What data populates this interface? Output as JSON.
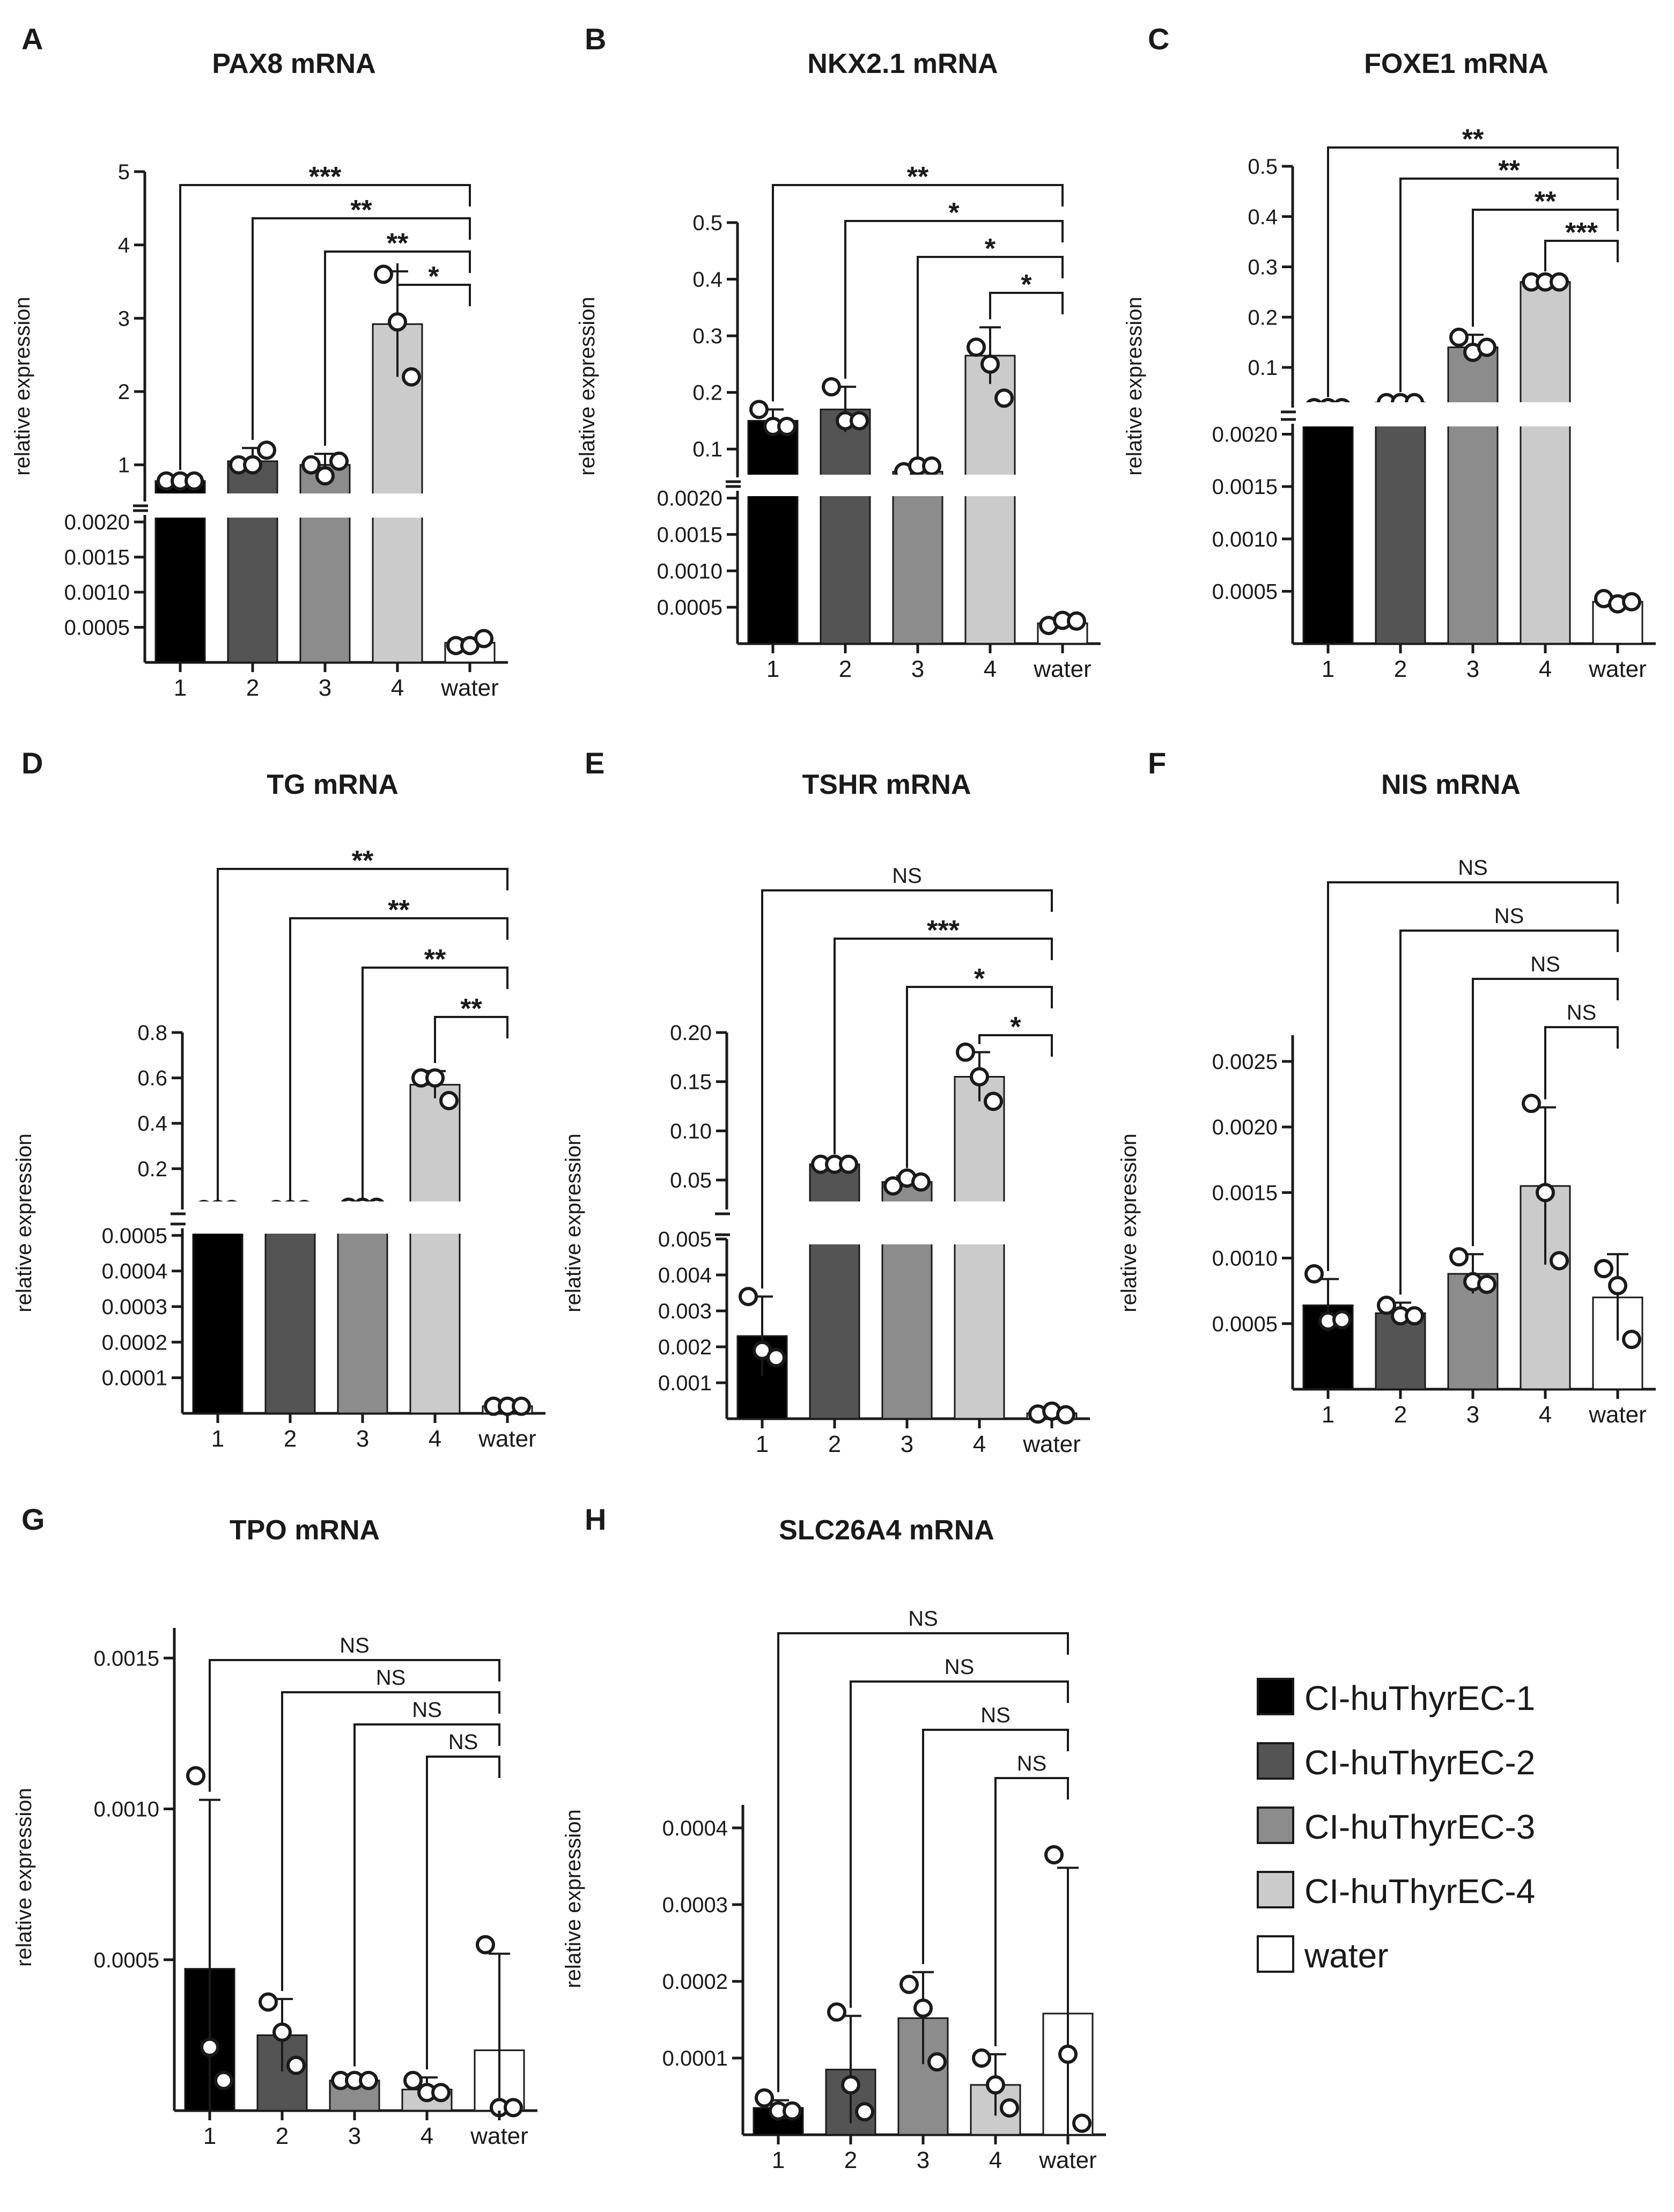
{
  "figure": {
    "legend": [
      {
        "label": "CI-huThyrEC-1",
        "color": "#000000"
      },
      {
        "label": "CI-huThyrEC-2",
        "color": "#545454"
      },
      {
        "label": "CI-huThyrEC-3",
        "color": "#8c8c8c"
      },
      {
        "label": "CI-huThyrEC-4",
        "color": "#cbcbcb"
      },
      {
        "label": "water",
        "color": "#ffffff"
      }
    ]
  },
  "chart_data": [
    {
      "panel": "A",
      "title": "PAX8 mRNA",
      "type": "bar",
      "ylabel": "relative expression",
      "categories": [
        "1",
        "2",
        "3",
        "4",
        "water"
      ],
      "broken_axis": true,
      "lower_ticks": [
        "0.0005",
        "0.0010",
        "0.0015",
        "0.0020"
      ],
      "lower_ylim": [
        0,
        0.0021
      ],
      "upper_ticks": [
        "1",
        "2",
        "3",
        "4",
        "5"
      ],
      "upper_ylim": [
        0.5,
        5
      ],
      "values": [
        0.78,
        1.05,
        1.0,
        2.92,
        0.00028
      ],
      "errors": [
        0.04,
        0.18,
        0.15,
        0.72,
        5e-05
      ],
      "points": [
        [
          0.78,
          0.78,
          0.78
        ],
        [
          1.0,
          1.0,
          1.2
        ],
        [
          1.0,
          0.85,
          1.05
        ],
        [
          3.6,
          2.95,
          2.2
        ],
        [
          0.00024,
          0.00024,
          0.00034
        ]
      ],
      "comparisons": [
        {
          "from": "1",
          "to": "water",
          "label": "***"
        },
        {
          "from": "2",
          "to": "water",
          "label": "**"
        },
        {
          "from": "3",
          "to": "water",
          "label": "**"
        },
        {
          "from": "4",
          "to": "water",
          "label": "*"
        }
      ]
    },
    {
      "panel": "B",
      "title": "NKX2.1 mRNA",
      "type": "bar",
      "ylabel": "relative expression",
      "categories": [
        "1",
        "2",
        "3",
        "4",
        "water"
      ],
      "broken_axis": true,
      "lower_ticks": [
        "0.0005",
        "0.0010",
        "0.0015",
        "0.0020"
      ],
      "lower_ylim": [
        0,
        0.0021
      ],
      "upper_ticks": [
        "0.1",
        "0.2",
        "0.3",
        "0.4",
        "0.5"
      ],
      "upper_ylim": [
        0.05,
        0.5
      ],
      "values": [
        0.15,
        0.17,
        0.06,
        0.265,
        0.00028
      ],
      "errors": [
        0.02,
        0.04,
        0.01,
        0.05,
        4e-05
      ],
      "points": [
        [
          0.17,
          0.14,
          0.14
        ],
        [
          0.21,
          0.15,
          0.15
        ],
        [
          0.06,
          0.07,
          0.07
        ],
        [
          0.28,
          0.25,
          0.19
        ],
        [
          0.00025,
          0.00032,
          0.00031
        ]
      ],
      "comparisons": [
        {
          "from": "1",
          "to": "water",
          "label": "**"
        },
        {
          "from": "2",
          "to": "water",
          "label": "*"
        },
        {
          "from": "3",
          "to": "water",
          "label": "*"
        },
        {
          "from": "4",
          "to": "water",
          "label": "*"
        }
      ]
    },
    {
      "panel": "C",
      "title": "FOXE1 mRNA",
      "type": "bar",
      "ylabel": "relative expression",
      "categories": [
        "1",
        "2",
        "3",
        "4",
        "water"
      ],
      "broken_axis": true,
      "lower_ticks": [
        "0.0005",
        "0.0010",
        "0.0015",
        "0.0020"
      ],
      "lower_ylim": [
        0,
        0.0021
      ],
      "upper_ticks": [
        "0.1",
        "0.2",
        "0.3",
        "0.4",
        "0.5"
      ],
      "upper_ylim": [
        0.02,
        0.5
      ],
      "values": [
        0.02,
        0.03,
        0.14,
        0.27,
        0.0004
      ],
      "errors": [
        0.005,
        0.005,
        0.025,
        0.005,
        5e-05
      ],
      "points": [
        [
          0.02,
          0.02,
          0.02
        ],
        [
          0.03,
          0.03,
          0.03
        ],
        [
          0.16,
          0.13,
          0.14
        ],
        [
          0.27,
          0.27,
          0.27
        ],
        [
          0.00043,
          0.00038,
          0.0004
        ]
      ],
      "comparisons": [
        {
          "from": "1",
          "to": "water",
          "label": "**"
        },
        {
          "from": "2",
          "to": "water",
          "label": "**"
        },
        {
          "from": "3",
          "to": "water",
          "label": "**"
        },
        {
          "from": "4",
          "to": "water",
          "label": "***"
        }
      ]
    },
    {
      "panel": "D",
      "title": "TG mRNA",
      "type": "bar",
      "ylabel": "relative expression",
      "categories": [
        "1",
        "2",
        "3",
        "4",
        "water"
      ],
      "broken_axis": true,
      "lower_ticks": [
        "0.0001",
        "0.0002",
        "0.0003",
        "0.0004",
        "0.0005"
      ],
      "lower_ylim": [
        0,
        0.00052
      ],
      "upper_ticks": [
        "0.2",
        "0.4",
        "0.6",
        "0.8"
      ],
      "upper_ylim": [
        0.02,
        0.8
      ],
      "values": [
        0.02,
        0.02,
        0.03,
        0.57,
        2e-05
      ],
      "errors": [
        0.003,
        0.003,
        0.005,
        0.06,
        4e-06
      ],
      "points": [
        [
          0.02,
          0.02,
          0.02
        ],
        [
          0.02,
          0.02,
          0.02
        ],
        [
          0.03,
          0.03,
          0.03
        ],
        [
          0.6,
          0.6,
          0.5
        ],
        [
          2e-05,
          2e-05,
          2e-05
        ]
      ],
      "comparisons": [
        {
          "from": "1",
          "to": "water",
          "label": "**"
        },
        {
          "from": "2",
          "to": "water",
          "label": "**"
        },
        {
          "from": "3",
          "to": "water",
          "label": "**"
        },
        {
          "from": "4",
          "to": "water",
          "label": "**"
        }
      ]
    },
    {
      "panel": "E",
      "title": "TSHR mRNA",
      "type": "bar",
      "ylabel": "relative expression",
      "categories": [
        "1",
        "2",
        "3",
        "4",
        "water"
      ],
      "broken_axis": true,
      "lower_ticks": [
        "0.001",
        "0.002",
        "0.003",
        "0.004",
        "0.005"
      ],
      "lower_ylim": [
        0,
        0.005
      ],
      "upper_ticks": [
        "0.05",
        "0.10",
        "0.15",
        "0.20"
      ],
      "upper_ylim": [
        0.02,
        0.2
      ],
      "values": [
        0.0023,
        0.066,
        0.048,
        0.155,
        0.00015
      ],
      "errors": [
        0.0011,
        0.002,
        0.006,
        0.025,
        6e-05
      ],
      "points": [
        [
          0.0034,
          0.0019,
          0.0017
        ],
        [
          0.066,
          0.066,
          0.066
        ],
        [
          0.044,
          0.052,
          0.048
        ],
        [
          0.18,
          0.155,
          0.13
        ],
        [
          0.00013,
          0.00021,
          0.00011
        ]
      ],
      "comparisons": [
        {
          "from": "1",
          "to": "water",
          "label": "NS"
        },
        {
          "from": "2",
          "to": "water",
          "label": "***"
        },
        {
          "from": "3",
          "to": "water",
          "label": "*"
        },
        {
          "from": "4",
          "to": "water",
          "label": "*"
        }
      ]
    },
    {
      "panel": "F",
      "title": "NIS mRNA",
      "type": "bar",
      "ylabel": "relative expression",
      "categories": [
        "1",
        "2",
        "3",
        "4",
        "water"
      ],
      "broken_axis": false,
      "ticks": [
        "0.0005",
        "0.0010",
        "0.0015",
        "0.0020",
        "0.0025"
      ],
      "ylim": [
        0,
        0.0027
      ],
      "values": [
        0.00064,
        0.00058,
        0.00088,
        0.00155,
        0.0007
      ],
      "errors": [
        0.0002,
        8e-05,
        0.00015,
        0.0006,
        0.00033
      ],
      "points": [
        [
          0.00088,
          0.00052,
          0.00053
        ],
        [
          0.00064,
          0.00056,
          0.00056
        ],
        [
          0.00101,
          0.00082,
          0.0008
        ],
        [
          0.00218,
          0.0015,
          0.00098
        ],
        [
          0.00092,
          0.00079,
          0.00038
        ]
      ],
      "comparisons": [
        {
          "from": "1",
          "to": "water",
          "label": "NS"
        },
        {
          "from": "2",
          "to": "water",
          "label": "NS"
        },
        {
          "from": "3",
          "to": "water",
          "label": "NS"
        },
        {
          "from": "4",
          "to": "water",
          "label": "NS"
        }
      ]
    },
    {
      "panel": "G",
      "title": "TPO mRNA",
      "type": "bar",
      "ylabel": "relative expression",
      "categories": [
        "1",
        "2",
        "3",
        "4",
        "water"
      ],
      "broken_axis": false,
      "ticks": [
        "0.0005",
        "0.0010",
        "0.0015"
      ],
      "ylim": [
        0,
        0.0016
      ],
      "values": [
        0.00047,
        0.00025,
        0.0001,
        7e-05,
        0.0002
      ],
      "errors": [
        0.00056,
        0.00012,
        2e-05,
        4e-05,
        0.00032
      ],
      "points": [
        [
          0.00111,
          0.00021,
          0.0001
        ],
        [
          0.00036,
          0.00026,
          0.00015
        ],
        [
          0.0001,
          0.0001,
          0.0001
        ],
        [
          0.0001,
          6e-05,
          6e-05
        ],
        [
          0.00055,
          1e-05,
          1e-05
        ]
      ],
      "comparisons": [
        {
          "from": "1",
          "to": "water",
          "label": "NS"
        },
        {
          "from": "2",
          "to": "water",
          "label": "NS"
        },
        {
          "from": "3",
          "to": "water",
          "label": "NS"
        },
        {
          "from": "4",
          "to": "water",
          "label": "NS"
        }
      ]
    },
    {
      "panel": "H",
      "title": "SLC26A4 mRNA",
      "type": "bar",
      "ylabel": "relative expression",
      "categories": [
        "1",
        "2",
        "3",
        "4",
        "water"
      ],
      "broken_axis": false,
      "ticks": [
        "0.0001",
        "0.0002",
        "0.0003",
        "0.0004"
      ],
      "ylim": [
        0,
        0.00043
      ],
      "values": [
        3.5e-05,
        8.5e-05,
        0.000152,
        6.5e-05,
        0.000158
      ],
      "errors": [
        1e-05,
        7e-05,
        6e-05,
        4e-05,
        0.00019
      ],
      "points": [
        [
          4.8e-05,
          3.1e-05,
          3.1e-05
        ],
        [
          0.00016,
          6.5e-05,
          3e-05
        ],
        [
          0.000196,
          0.000165,
          9.5e-05
        ],
        [
          0.0001,
          6.5e-05,
          3.5e-05
        ],
        [
          0.000365,
          0.000105,
          1.5e-05
        ]
      ],
      "comparisons": [
        {
          "from": "1",
          "to": "water",
          "label": "NS"
        },
        {
          "from": "2",
          "to": "water",
          "label": "NS"
        },
        {
          "from": "3",
          "to": "water",
          "label": "NS"
        },
        {
          "from": "4",
          "to": "water",
          "label": "NS"
        }
      ]
    }
  ]
}
